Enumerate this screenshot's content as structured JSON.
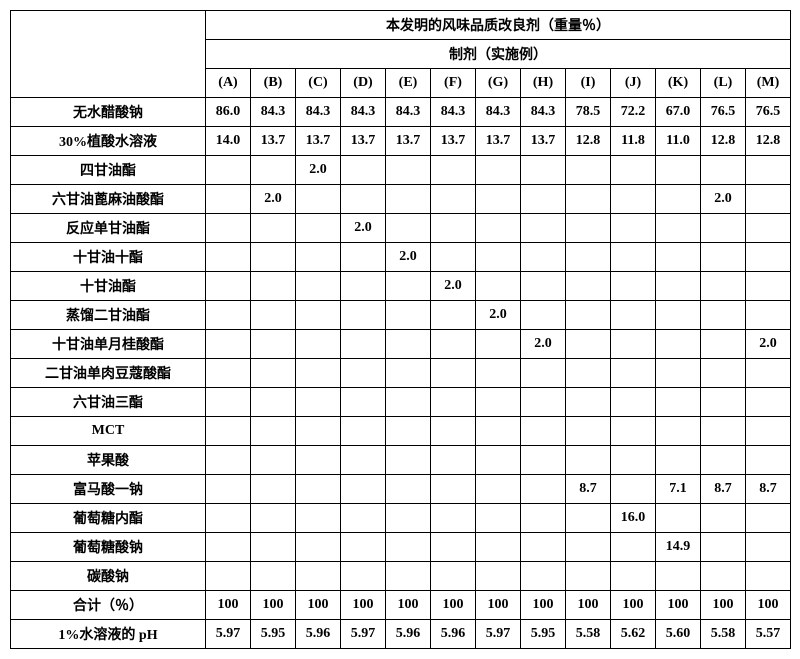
{
  "header": {
    "top": "本发明的风味品质改良剂（重量％）",
    "sub": "制剂（实施例）"
  },
  "columns": [
    "(A)",
    "(B)",
    "(C)",
    "(D)",
    "(E)",
    "(F)",
    "(G)",
    "(H)",
    "(I)",
    "(J)",
    "(K)",
    "(L)",
    "(M)"
  ],
  "rows": [
    {
      "label": "无水醋酸钠",
      "cells": [
        "86.0",
        "84.3",
        "84.3",
        "84.3",
        "84.3",
        "84.3",
        "84.3",
        "84.3",
        "78.5",
        "72.2",
        "67.0",
        "76.5",
        "76.5"
      ]
    },
    {
      "label": "30%植酸水溶液",
      "cells": [
        "14.0",
        "13.7",
        "13.7",
        "13.7",
        "13.7",
        "13.7",
        "13.7",
        "13.7",
        "12.8",
        "11.8",
        "11.0",
        "12.8",
        "12.8"
      ]
    },
    {
      "label": "四甘油酯",
      "cells": [
        "",
        "",
        "2.0",
        "",
        "",
        "",
        "",
        "",
        "",
        "",
        "",
        "",
        ""
      ]
    },
    {
      "label": "六甘油蓖麻油酸酯",
      "cells": [
        "",
        "2.0",
        "",
        "",
        "",
        "",
        "",
        "",
        "",
        "",
        "",
        "2.0",
        ""
      ]
    },
    {
      "label": "反应单甘油酯",
      "cells": [
        "",
        "",
        "",
        "2.0",
        "",
        "",
        "",
        "",
        "",
        "",
        "",
        "",
        ""
      ]
    },
    {
      "label": "十甘油十酯",
      "cells": [
        "",
        "",
        "",
        "",
        "2.0",
        "",
        "",
        "",
        "",
        "",
        "",
        "",
        ""
      ]
    },
    {
      "label": "十甘油酯",
      "cells": [
        "",
        "",
        "",
        "",
        "",
        "2.0",
        "",
        "",
        "",
        "",
        "",
        "",
        ""
      ]
    },
    {
      "label": "蒸馏二甘油酯",
      "cells": [
        "",
        "",
        "",
        "",
        "",
        "",
        "2.0",
        "",
        "",
        "",
        "",
        "",
        ""
      ]
    },
    {
      "label": "十甘油单月桂酸酯",
      "cells": [
        "",
        "",
        "",
        "",
        "",
        "",
        "",
        "2.0",
        "",
        "",
        "",
        "",
        "2.0"
      ]
    },
    {
      "label": "二甘油单肉豆蔻酸酯",
      "cells": [
        "",
        "",
        "",
        "",
        "",
        "",
        "",
        "",
        "",
        "",
        "",
        "",
        ""
      ]
    },
    {
      "label": "六甘油三酯",
      "cells": [
        "",
        "",
        "",
        "",
        "",
        "",
        "",
        "",
        "",
        "",
        "",
        "",
        ""
      ]
    },
    {
      "label": "MCT",
      "cells": [
        "",
        "",
        "",
        "",
        "",
        "",
        "",
        "",
        "",
        "",
        "",
        "",
        ""
      ]
    },
    {
      "label": "苹果酸",
      "cells": [
        "",
        "",
        "",
        "",
        "",
        "",
        "",
        "",
        "",
        "",
        "",
        "",
        ""
      ]
    },
    {
      "label": "富马酸一钠",
      "cells": [
        "",
        "",
        "",
        "",
        "",
        "",
        "",
        "",
        "8.7",
        "",
        "7.1",
        "8.7",
        "8.7"
      ]
    },
    {
      "label": "葡萄糖内酯",
      "cells": [
        "",
        "",
        "",
        "",
        "",
        "",
        "",
        "",
        "",
        "16.0",
        "",
        "",
        ""
      ]
    },
    {
      "label": "葡萄糖酸钠",
      "cells": [
        "",
        "",
        "",
        "",
        "",
        "",
        "",
        "",
        "",
        "",
        "14.9",
        "",
        ""
      ]
    },
    {
      "label": "碳酸钠",
      "cells": [
        "",
        "",
        "",
        "",
        "",
        "",
        "",
        "",
        "",
        "",
        "",
        "",
        ""
      ]
    },
    {
      "label": "合计（％）",
      "cells": [
        "100",
        "100",
        "100",
        "100",
        "100",
        "100",
        "100",
        "100",
        "100",
        "100",
        "100",
        "100",
        "100"
      ]
    },
    {
      "label": "1%水溶液的 pH",
      "cells": [
        "5.97",
        "5.95",
        "5.96",
        "5.97",
        "5.96",
        "5.96",
        "5.97",
        "5.95",
        "5.58",
        "5.62",
        "5.60",
        "5.58",
        "5.57"
      ]
    }
  ]
}
